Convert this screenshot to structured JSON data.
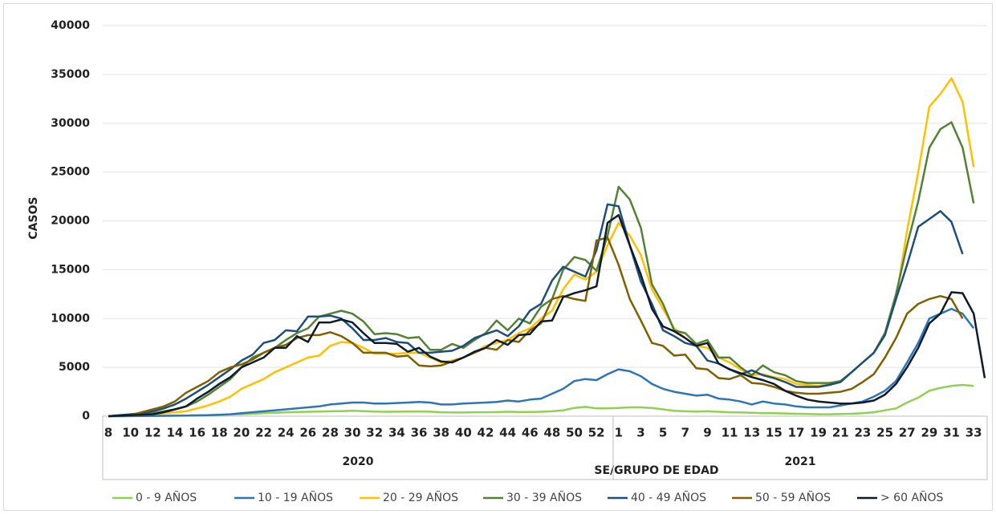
{
  "chart_data": {
    "type": "line",
    "x_label": "SE/GRUPO DE EDAD",
    "y_label": "CASOS",
    "categories": [
      "8",
      null,
      "10",
      null,
      "12",
      null,
      "14",
      null,
      "16",
      null,
      "18",
      null,
      "20",
      null,
      "22",
      null,
      "24",
      null,
      "26",
      null,
      "28",
      null,
      "30",
      null,
      "32",
      null,
      "34",
      null,
      "36",
      null,
      "38",
      null,
      "40",
      null,
      "42",
      null,
      "44",
      null,
      "46",
      null,
      "48",
      null,
      "50",
      null,
      "52",
      null,
      "1",
      null,
      "3",
      null,
      "5",
      null,
      "7",
      null,
      "9",
      null,
      "11",
      null,
      "13",
      null,
      "15",
      null,
      "17",
      null,
      "19",
      null,
      "21",
      null,
      "23",
      null,
      "25",
      null,
      "27",
      null,
      "29",
      null,
      "31",
      null,
      "33",
      null
    ],
    "x_groups": [
      {
        "label": "2020",
        "count": 46
      },
      {
        "label": "2021",
        "count": 34
      }
    ],
    "ylim": [
      0,
      40000
    ],
    "yticks": [
      0,
      5000,
      10000,
      15000,
      20000,
      25000,
      30000,
      35000,
      40000
    ],
    "grid": true,
    "legend": "bottom",
    "series": [
      {
        "name": "0 - 9 AÑOS",
        "color": "#92d050",
        "values": [
          0,
          0,
          10,
          20,
          30,
          40,
          50,
          60,
          80,
          100,
          130,
          170,
          200,
          250,
          300,
          350,
          400,
          420,
          450,
          480,
          500,
          520,
          550,
          520,
          480,
          450,
          460,
          470,
          480,
          460,
          400,
          380,
          380,
          400,
          400,
          420,
          450,
          430,
          430,
          450,
          500,
          600,
          850,
          950,
          800,
          800,
          850,
          900,
          900,
          850,
          700,
          550,
          500,
          480,
          500,
          450,
          400,
          380,
          350,
          300,
          300,
          280,
          250,
          230,
          200,
          200,
          220,
          250,
          300,
          400,
          600,
          800,
          1400,
          1900,
          2600,
          2900,
          3100,
          3200,
          3100,
          null
        ]
      },
      {
        "name": "10 - 19 AÑOS",
        "color": "#2e75b6",
        "values": [
          0,
          0,
          10,
          20,
          30,
          40,
          50,
          60,
          80,
          100,
          150,
          200,
          300,
          400,
          500,
          600,
          700,
          800,
          900,
          1000,
          1200,
          1300,
          1400,
          1400,
          1300,
          1300,
          1350,
          1400,
          1450,
          1400,
          1200,
          1200,
          1300,
          1350,
          1400,
          1450,
          1600,
          1500,
          1700,
          1800,
          2300,
          2800,
          3600,
          3800,
          3700,
          4300,
          4800,
          4600,
          4100,
          3300,
          2800,
          2500,
          2300,
          2100,
          2200,
          1800,
          1700,
          1500,
          1200,
          1500,
          1300,
          1200,
          1000,
          900,
          900,
          900,
          1100,
          1300,
          1500,
          2000,
          2600,
          3600,
          5500,
          7500,
          10000,
          10500,
          11000,
          10500,
          9000,
          null
        ]
      },
      {
        "name": "20 - 29 AÑOS",
        "color": "#ffc000",
        "values": [
          0,
          50,
          100,
          150,
          200,
          300,
          400,
          500,
          800,
          1100,
          1500,
          2000,
          2800,
          3300,
          3800,
          4500,
          5000,
          5500,
          6000,
          6200,
          7200,
          7600,
          7500,
          7000,
          6400,
          6400,
          6400,
          6500,
          6500,
          6000,
          5500,
          5700,
          6000,
          6500,
          7200,
          7500,
          7800,
          8500,
          9000,
          10000,
          10800,
          13000,
          14500,
          14000,
          14800,
          17500,
          19800,
          18500,
          16500,
          13000,
          11000,
          9000,
          8000,
          7200,
          7000,
          6000,
          5500,
          4800,
          4200,
          4300,
          4000,
          3800,
          3300,
          3200,
          3100,
          3300,
          3600,
          4500,
          5500,
          6500,
          8500,
          12000,
          19000,
          25000,
          31700,
          33000,
          34600,
          32200,
          25500,
          null
        ]
      },
      {
        "name": "30 - 39 AÑOS",
        "color": "#548235",
        "values": [
          0,
          50,
          100,
          200,
          300,
          500,
          700,
          1000,
          1500,
          2200,
          3000,
          3800,
          5000,
          6000,
          6500,
          7000,
          7800,
          8500,
          9000,
          10200,
          10500,
          10800,
          10500,
          9700,
          8400,
          8500,
          8400,
          8000,
          8100,
          6800,
          6800,
          7400,
          7000,
          7800,
          8500,
          9800,
          8800,
          10000,
          9500,
          11200,
          12000,
          15000,
          16300,
          16000,
          14900,
          18500,
          23500,
          22200,
          19300,
          13500,
          11500,
          8800,
          8500,
          7400,
          7800,
          6000,
          6000,
          5000,
          4200,
          5200,
          4500,
          4200,
          3600,
          3400,
          3400,
          3400,
          3600,
          4500,
          5500,
          6500,
          8500,
          12500,
          17500,
          22000,
          27500,
          29400,
          30100,
          27500,
          21800,
          null
        ]
      },
      {
        "name": "40 - 49 AÑOS",
        "color": "#1f4e79",
        "values": [
          0,
          100,
          200,
          300,
          500,
          800,
          1200,
          1800,
          2500,
          3200,
          4000,
          4800,
          5700,
          6300,
          7500,
          7800,
          8800,
          8700,
          10200,
          10200,
          10300,
          10000,
          9000,
          7800,
          7800,
          8000,
          7600,
          7500,
          6500,
          6500,
          6600,
          6700,
          7200,
          8000,
          8400,
          8800,
          8200,
          9200,
          10800,
          11500,
          13900,
          15300,
          14800,
          14300,
          17000,
          21700,
          21500,
          17500,
          13800,
          11500,
          8800,
          8200,
          7500,
          7200,
          5700,
          5400,
          4800,
          4300,
          4700,
          4200,
          3900,
          3500,
          3000,
          3000,
          3000,
          3200,
          3500,
          4500,
          5500,
          6500,
          8300,
          12000,
          15500,
          19400,
          20200,
          21000,
          19900,
          16600,
          null,
          null
        ]
      },
      {
        "name": "50 - 59 AÑOS",
        "color": "#7f6000",
        "values": [
          0,
          50,
          100,
          400,
          700,
          1000,
          1500,
          2400,
          3000,
          3600,
          4500,
          5000,
          5300,
          5800,
          6500,
          7000,
          7300,
          8000,
          8300,
          8300,
          8600,
          8200,
          7500,
          6500,
          6500,
          6500,
          6100,
          6200,
          5200,
          5100,
          5200,
          5600,
          6000,
          6500,
          7000,
          6800,
          7800,
          7600,
          8800,
          9500,
          12000,
          12300,
          12000,
          11800,
          18000,
          18300,
          15500,
          12000,
          9800,
          7500,
          7200,
          6200,
          6300,
          4900,
          4800,
          3900,
          3800,
          4200,
          3400,
          3300,
          3000,
          2600,
          2400,
          2300,
          2300,
          2400,
          2500,
          2800,
          3500,
          4300,
          6000,
          8000,
          10500,
          11500,
          12000,
          12300,
          12000,
          10000,
          null,
          null
        ]
      },
      {
        "name": "> 60 AÑOS",
        "color": "#0d1b2a",
        "values": [
          0,
          50,
          100,
          150,
          200,
          400,
          700,
          1000,
          1800,
          2500,
          3300,
          4000,
          5000,
          5500,
          6000,
          7000,
          7000,
          8200,
          7600,
          9600,
          9600,
          9900,
          9600,
          8500,
          7500,
          7500,
          7400,
          6600,
          7000,
          6100,
          5600,
          5500,
          6000,
          6600,
          7000,
          7800,
          7300,
          8300,
          8400,
          9700,
          9800,
          12200,
          12600,
          12900,
          13300,
          19800,
          20600,
          17500,
          14500,
          11000,
          9200,
          8700,
          8000,
          7200,
          7500,
          5400,
          4800,
          4400,
          4000,
          3700,
          3300,
          2600,
          2100,
          1700,
          1500,
          1400,
          1300,
          1300,
          1400,
          1600,
          2200,
          3300,
          5000,
          7000,
          9500,
          10500,
          12700,
          12600,
          10500,
          3900
        ]
      }
    ]
  }
}
